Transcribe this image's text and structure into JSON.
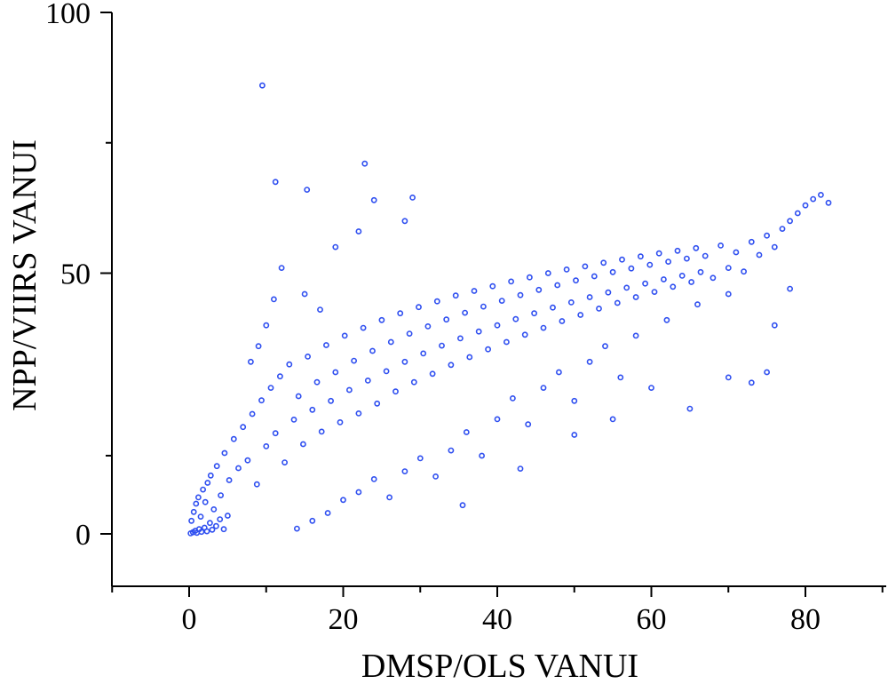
{
  "chart_data": {
    "type": "scatter",
    "title": "",
    "xlabel": "DMSP/OLS VANUI",
    "ylabel": "NPP/VIIRS VANUI",
    "xlim": [
      -10,
      90
    ],
    "ylim": [
      -10,
      100
    ],
    "xticks": [
      0,
      20,
      40,
      60,
      80
    ],
    "yticks": [
      0,
      50,
      100
    ],
    "x_tick_labels": [
      "0",
      "20",
      "40",
      "60",
      "80"
    ],
    "y_tick_labels": [
      "0",
      "50",
      "100"
    ],
    "grid": false,
    "legend": "none",
    "marker_color": "#2f4ff0",
    "series": [
      {
        "points": [
          [
            0.2,
            0.1
          ],
          [
            0.5,
            0.3
          ],
          [
            0.8,
            0.6
          ],
          [
            1.0,
            0.2
          ],
          [
            1.3,
            0.9
          ],
          [
            1.6,
            0.4
          ],
          [
            2.0,
            1.2
          ],
          [
            2.3,
            0.5
          ],
          [
            2.7,
            2.1
          ],
          [
            3.0,
            0.8
          ],
          [
            3.5,
            1.5
          ],
          [
            4.0,
            2.8
          ],
          [
            4.5,
            0.9
          ],
          [
            5.0,
            3.5
          ],
          [
            0.3,
            2.5
          ],
          [
            0.6,
            4.2
          ],
          [
            0.9,
            5.8
          ],
          [
            1.2,
            7.0
          ],
          [
            1.5,
            3.3
          ],
          [
            1.8,
            8.5
          ],
          [
            2.1,
            6.1
          ],
          [
            2.4,
            9.8
          ],
          [
            2.8,
            11.2
          ],
          [
            3.2,
            4.7
          ],
          [
            3.6,
            13.0
          ],
          [
            4.1,
            7.4
          ],
          [
            4.6,
            15.5
          ],
          [
            5.2,
            10.3
          ],
          [
            5.8,
            18.2
          ],
          [
            6.4,
            12.6
          ],
          [
            7.0,
            20.5
          ],
          [
            7.6,
            14.1
          ],
          [
            8.2,
            23.0
          ],
          [
            8.8,
            9.5
          ],
          [
            9.4,
            25.6
          ],
          [
            10.0,
            16.8
          ],
          [
            10.6,
            28.0
          ],
          [
            11.2,
            19.3
          ],
          [
            11.8,
            30.2
          ],
          [
            12.4,
            13.7
          ],
          [
            13.0,
            32.5
          ],
          [
            13.6,
            21.9
          ],
          [
            14.2,
            26.4
          ],
          [
            14.8,
            17.2
          ],
          [
            15.4,
            34.0
          ],
          [
            16.0,
            23.8
          ],
          [
            16.6,
            29.1
          ],
          [
            17.2,
            19.6
          ],
          [
            17.8,
            36.2
          ],
          [
            18.4,
            25.5
          ],
          [
            19.0,
            31.0
          ],
          [
            19.6,
            21.4
          ],
          [
            20.2,
            38.0
          ],
          [
            20.8,
            27.6
          ],
          [
            21.4,
            33.2
          ],
          [
            22.0,
            23.1
          ],
          [
            22.6,
            39.5
          ],
          [
            23.2,
            29.4
          ],
          [
            23.8,
            35.1
          ],
          [
            24.4,
            25.0
          ],
          [
            25.0,
            41.0
          ],
          [
            25.6,
            31.2
          ],
          [
            26.2,
            36.8
          ],
          [
            26.8,
            27.3
          ],
          [
            27.4,
            42.3
          ],
          [
            28.0,
            33.0
          ],
          [
            28.6,
            38.4
          ],
          [
            29.2,
            29.1
          ],
          [
            29.8,
            43.5
          ],
          [
            30.4,
            34.6
          ],
          [
            31.0,
            39.8
          ],
          [
            31.6,
            30.7
          ],
          [
            32.2,
            44.6
          ],
          [
            32.8,
            36.1
          ],
          [
            33.4,
            41.1
          ],
          [
            34.0,
            32.4
          ],
          [
            34.6,
            45.7
          ],
          [
            35.2,
            37.5
          ],
          [
            35.8,
            42.4
          ],
          [
            36.4,
            33.9
          ],
          [
            37.0,
            46.6
          ],
          [
            37.6,
            38.8
          ],
          [
            38.2,
            43.6
          ],
          [
            38.8,
            35.4
          ],
          [
            39.4,
            47.5
          ],
          [
            40.0,
            40.0
          ],
          [
            40.6,
            44.7
          ],
          [
            41.2,
            36.8
          ],
          [
            41.8,
            48.4
          ],
          [
            42.4,
            41.2
          ],
          [
            43.0,
            45.8
          ],
          [
            43.6,
            38.2
          ],
          [
            44.2,
            49.2
          ],
          [
            44.8,
            42.3
          ],
          [
            45.4,
            46.8
          ],
          [
            46.0,
            39.5
          ],
          [
            46.6,
            50.0
          ],
          [
            47.2,
            43.4
          ],
          [
            47.8,
            47.7
          ],
          [
            48.4,
            40.8
          ],
          [
            49.0,
            50.7
          ],
          [
            49.6,
            44.4
          ],
          [
            50.2,
            48.6
          ],
          [
            50.8,
            42.0
          ],
          [
            51.4,
            51.3
          ],
          [
            52.0,
            45.4
          ],
          [
            52.6,
            49.4
          ],
          [
            53.2,
            43.2
          ],
          [
            53.8,
            52.0
          ],
          [
            54.4,
            46.3
          ],
          [
            55.0,
            50.2
          ],
          [
            55.6,
            44.3
          ],
          [
            56.2,
            52.6
          ],
          [
            56.8,
            47.2
          ],
          [
            57.4,
            50.9
          ],
          [
            58.0,
            45.4
          ],
          [
            58.6,
            53.2
          ],
          [
            59.2,
            48.0
          ],
          [
            59.8,
            51.6
          ],
          [
            60.4,
            46.4
          ],
          [
            61.0,
            53.8
          ],
          [
            61.6,
            48.8
          ],
          [
            62.2,
            52.2
          ],
          [
            62.8,
            47.4
          ],
          [
            63.4,
            54.3
          ],
          [
            64.0,
            49.5
          ],
          [
            64.6,
            52.8
          ],
          [
            65.2,
            48.3
          ],
          [
            65.8,
            54.8
          ],
          [
            66.4,
            50.2
          ],
          [
            67.0,
            53.3
          ],
          [
            68.0,
            49.1
          ],
          [
            69.0,
            55.3
          ],
          [
            70.0,
            51.0
          ],
          [
            71.0,
            54.0
          ],
          [
            72.0,
            50.3
          ],
          [
            73.0,
            56.0
          ],
          [
            74.0,
            53.5
          ],
          [
            75.0,
            57.2
          ],
          [
            76.0,
            55.0
          ],
          [
            77.0,
            58.5
          ],
          [
            78.0,
            60.0
          ],
          [
            79.0,
            61.5
          ],
          [
            80.0,
            63.0
          ],
          [
            81.0,
            64.2
          ],
          [
            82.0,
            65.0
          ],
          [
            83.0,
            63.5
          ],
          [
            8.0,
            33.0
          ],
          [
            9.0,
            36.0
          ],
          [
            10.0,
            40.0
          ],
          [
            11.0,
            45.0
          ],
          [
            12.0,
            51.0
          ],
          [
            15.0,
            46.0
          ],
          [
            17.0,
            43.0
          ],
          [
            19.0,
            55.0
          ],
          [
            22.0,
            58.0
          ],
          [
            24.0,
            64.0
          ],
          [
            28.0,
            60.0
          ],
          [
            9.5,
            86.0
          ],
          [
            11.2,
            67.5
          ],
          [
            15.3,
            66.0
          ],
          [
            22.8,
            71.0
          ],
          [
            29.0,
            64.5
          ],
          [
            35.5,
            5.5
          ],
          [
            43.0,
            12.5
          ],
          [
            50.0,
            19.0
          ],
          [
            55.0,
            22.0
          ],
          [
            60.0,
            28.0
          ],
          [
            65.0,
            24.0
          ],
          [
            70.0,
            30.0
          ],
          [
            73.0,
            29.0
          ],
          [
            75.0,
            31.0
          ],
          [
            76.0,
            40.0
          ],
          [
            78.0,
            47.0
          ],
          [
            14.0,
            1.0
          ],
          [
            16.0,
            2.5
          ],
          [
            18.0,
            4.0
          ],
          [
            20.0,
            6.5
          ],
          [
            22.0,
            8.0
          ],
          [
            24.0,
            10.5
          ],
          [
            26.0,
            7.0
          ],
          [
            28.0,
            12.0
          ],
          [
            30.0,
            14.5
          ],
          [
            32.0,
            11.0
          ],
          [
            34.0,
            16.0
          ],
          [
            36.0,
            19.5
          ],
          [
            38.0,
            15.0
          ],
          [
            40.0,
            22.0
          ],
          [
            42.0,
            26.0
          ],
          [
            44.0,
            21.0
          ],
          [
            46.0,
            28.0
          ],
          [
            48.0,
            31.0
          ],
          [
            50.0,
            25.5
          ],
          [
            52.0,
            33.0
          ],
          [
            54.0,
            36.0
          ],
          [
            56.0,
            30.0
          ],
          [
            58.0,
            38.0
          ],
          [
            62.0,
            41.0
          ],
          [
            66.0,
            44.0
          ],
          [
            70.0,
            46.0
          ]
        ]
      }
    ]
  }
}
